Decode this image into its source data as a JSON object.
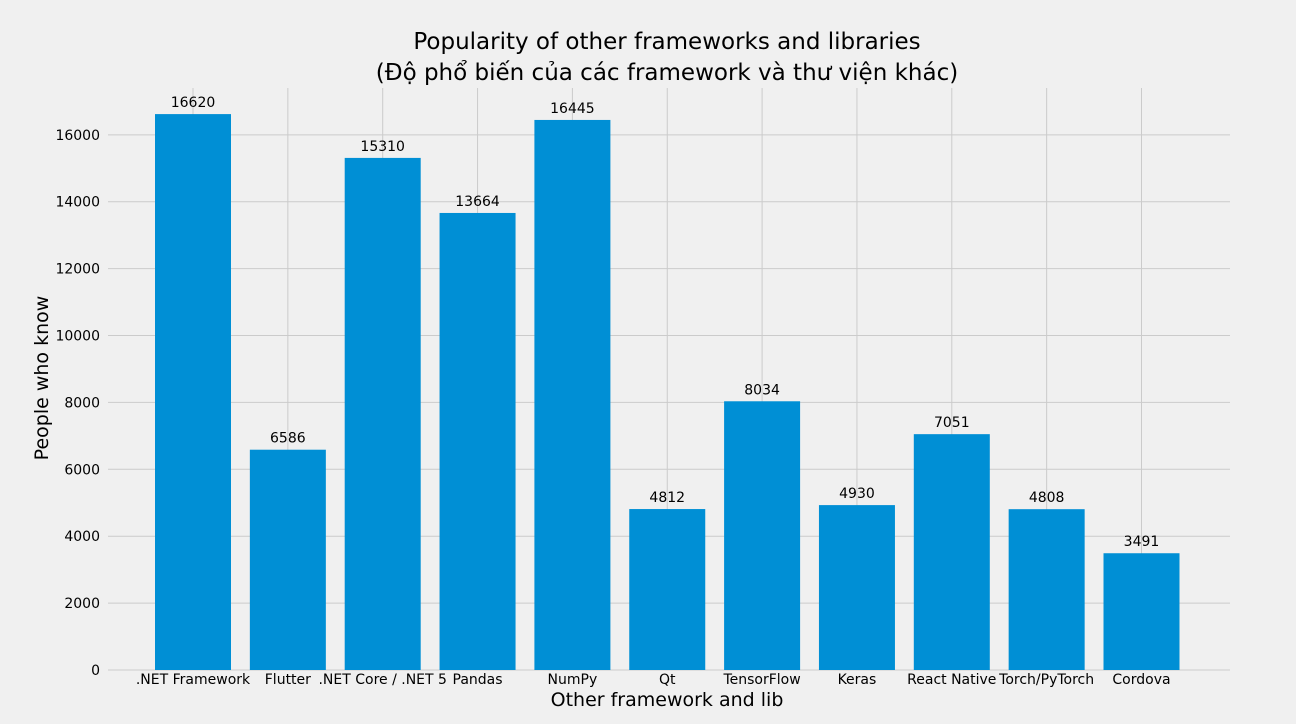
{
  "chart_data": {
    "type": "bar",
    "title": "Popularity of other frameworks and libraries",
    "subtitle": "(Độ phổ biến của các framework và thư viện khác)",
    "xlabel": "Other framework and lib",
    "ylabel": "People who know",
    "categories": [
      ".NET Framework",
      "Flutter",
      ".NET Core / .NET 5",
      "Pandas",
      "NumPy",
      "Qt",
      "TensorFlow",
      "Keras",
      "React Native",
      "Torch/PyTorch",
      "Cordova"
    ],
    "values": [
      16620,
      6586,
      15310,
      13664,
      16445,
      4812,
      8034,
      4930,
      7051,
      4808,
      3491
    ],
    "value_labels": [
      "16620",
      "6586",
      "15310",
      "13664",
      "16445",
      "4812",
      "8034",
      "4930",
      "7051",
      "4808",
      "3491"
    ],
    "ylim": [
      0,
      17400
    ],
    "yticks": [
      0,
      2000,
      4000,
      6000,
      8000,
      10000,
      12000,
      14000,
      16000
    ],
    "ytick_labels": [
      "0",
      "2000",
      "4000",
      "6000",
      "8000",
      "10000",
      "12000",
      "14000",
      "16000"
    ],
    "grid": true,
    "legend": "none",
    "colors": {
      "bar": "#008fd5",
      "background": "#f0f0f0",
      "grid": "#cbcbcb",
      "text": "#000000"
    }
  }
}
